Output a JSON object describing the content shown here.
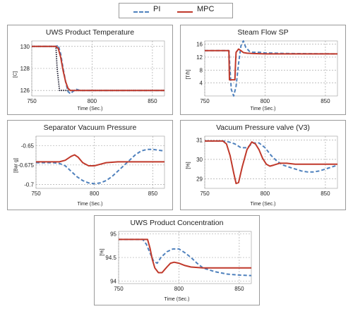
{
  "legend": {
    "pi_label": "PI",
    "mpc_label": "MPC"
  },
  "colors": {
    "pi": "#4f81bd",
    "mpc": "#c0392b",
    "setpoint": "#1a1a2e",
    "grid": "#9a9a9a"
  },
  "chart_data": [
    {
      "id": "uws-temp",
      "type": "line",
      "title": "UWS Product Temperature",
      "xlabel": "Time (Sec.)",
      "ylabel": "[C]",
      "xlim": [
        750,
        860
      ],
      "ylim": [
        125.5,
        130.5
      ],
      "xticks": [
        750,
        800,
        850
      ],
      "yticks": [
        126,
        128,
        130
      ],
      "yticklabels": [
        "126",
        "128",
        "130"
      ],
      "grid": true,
      "series": [
        {
          "name": "Setpoint",
          "style": "dotted",
          "x": [
            750,
            770,
            771,
            773,
            860
          ],
          "y": [
            130,
            130,
            128,
            126,
            126
          ]
        },
        {
          "name": "PI",
          "style": "dashed",
          "x": [
            750,
            770,
            772,
            774,
            776,
            778,
            780,
            782,
            784,
            787,
            790,
            795,
            800,
            860
          ],
          "y": [
            130,
            130,
            130.1,
            129.3,
            128,
            126.8,
            125.9,
            125.7,
            125.9,
            126.1,
            126,
            126,
            126,
            126
          ]
        },
        {
          "name": "MPC",
          "style": "solid",
          "x": [
            750,
            770,
            772,
            774,
            776,
            778,
            780,
            782,
            785,
            788,
            792,
            800,
            860
          ],
          "y": [
            130,
            130,
            129.8,
            129,
            127.8,
            126.8,
            126.2,
            126,
            126,
            126,
            126,
            126,
            126
          ]
        }
      ]
    },
    {
      "id": "steam-flow",
      "type": "line",
      "title": "Steam Flow SP",
      "xlabel": "Time (Sec.)",
      "ylabel": "[T/h]",
      "xlim": [
        750,
        860
      ],
      "ylim": [
        0,
        17
      ],
      "xticks": [
        750,
        800,
        850
      ],
      "yticks": [
        4,
        8,
        12,
        16
      ],
      "yticklabels": [
        "4",
        "8",
        "12",
        "16"
      ],
      "grid": true,
      "series": [
        {
          "name": "PI",
          "style": "dashed",
          "x": [
            750,
            770,
            771,
            772,
            774,
            776,
            778,
            780,
            782,
            784,
            787,
            790,
            795,
            800,
            820,
            860
          ],
          "y": [
            14,
            14,
            8,
            2,
            0,
            3,
            10,
            15.5,
            17,
            15,
            13.8,
            13.5,
            13.5,
            13.3,
            13.1,
            13
          ]
        },
        {
          "name": "MPC",
          "style": "solid",
          "x": [
            750,
            770,
            770.5,
            775,
            775.5,
            776,
            778,
            780,
            782,
            785,
            790,
            800,
            860
          ],
          "y": [
            14,
            14,
            5,
            5,
            10,
            13.5,
            14.5,
            14,
            13.4,
            13.2,
            13.1,
            13,
            13
          ]
        }
      ]
    },
    {
      "id": "separator-vacuum",
      "type": "line",
      "title": "Separator Vacuum Pressure",
      "xlabel": "Time (Sec.)",
      "ylabel": "[Bar g]",
      "xlim": [
        750,
        860
      ],
      "ylim": [
        -0.705,
        -0.638
      ],
      "xticks": [
        750,
        800,
        850
      ],
      "yticks": [
        -0.65,
        -0.675,
        -0.7
      ],
      "yticklabels": [
        "-0.65",
        "-0.675",
        "-0.7"
      ],
      "grid": true,
      "series": [
        {
          "name": "PI",
          "style": "dashed",
          "x": [
            750,
            765,
            770,
            775,
            780,
            785,
            790,
            795,
            800,
            805,
            810,
            815,
            820,
            825,
            830,
            835,
            840,
            845,
            850,
            855,
            860
          ],
          "y": [
            -0.672,
            -0.672,
            -0.673,
            -0.676,
            -0.683,
            -0.69,
            -0.695,
            -0.698,
            -0.699,
            -0.698,
            -0.695,
            -0.69,
            -0.683,
            -0.676,
            -0.669,
            -0.662,
            -0.657,
            -0.655,
            -0.655,
            -0.656,
            -0.657
          ]
        },
        {
          "name": "MPC",
          "style": "solid",
          "x": [
            750,
            765,
            770,
            775,
            780,
            783,
            786,
            790,
            795,
            800,
            805,
            810,
            820,
            830,
            840,
            860
          ],
          "y": [
            -0.671,
            -0.671,
            -0.671,
            -0.669,
            -0.664,
            -0.662,
            -0.665,
            -0.672,
            -0.676,
            -0.676,
            -0.674,
            -0.672,
            -0.671,
            -0.671,
            -0.671,
            -0.671
          ]
        }
      ]
    },
    {
      "id": "vacuum-valve",
      "type": "line",
      "title": "Vacuum Pressure valve (V3)",
      "xlabel": "Time (Sec.)",
      "ylabel": "[%]",
      "xlim": [
        750,
        860
      ],
      "ylim": [
        28.5,
        31.2
      ],
      "xticks": [
        750,
        800,
        850
      ],
      "yticks": [
        29,
        30,
        31
      ],
      "yticklabels": [
        "29",
        "30",
        "31"
      ],
      "grid": true,
      "series": [
        {
          "name": "PI",
          "style": "dashed",
          "x": [
            750,
            765,
            770,
            775,
            780,
            785,
            790,
            795,
            800,
            805,
            810,
            815,
            820,
            825,
            830,
            835,
            840,
            845,
            850,
            855,
            860
          ],
          "y": [
            30.95,
            30.95,
            30.9,
            30.8,
            30.6,
            30.6,
            30.85,
            30.85,
            30.6,
            30.2,
            29.9,
            29.7,
            29.6,
            29.5,
            29.4,
            29.35,
            29.35,
            29.4,
            29.5,
            29.6,
            29.7
          ]
        },
        {
          "name": "MPC",
          "style": "solid",
          "x": [
            750,
            765,
            768,
            771,
            774,
            776,
            778,
            781,
            785,
            789,
            792,
            795,
            798,
            801,
            804,
            807,
            812,
            818,
            825,
            840,
            860
          ],
          "y": [
            30.95,
            30.95,
            30.8,
            30.2,
            29.3,
            28.75,
            28.8,
            29.6,
            30.5,
            30.9,
            30.8,
            30.5,
            30.05,
            29.75,
            29.65,
            29.7,
            29.8,
            29.8,
            29.75,
            29.75,
            29.75
          ]
        }
      ]
    },
    {
      "id": "uws-concentration",
      "type": "line",
      "title": "UWS Product Concentration",
      "xlabel": "Time (Sec.)",
      "ylabel": "[%]",
      "xlim": [
        750,
        860
      ],
      "ylim": [
        93.95,
        95.05
      ],
      "xticks": [
        750,
        800,
        850
      ],
      "yticks": [
        94,
        94.5,
        95
      ],
      "yticklabels": [
        "94",
        "94.5",
        "95"
      ],
      "grid": true,
      "series": [
        {
          "name": "PI",
          "style": "dashed",
          "x": [
            750,
            770,
            773,
            776,
            779,
            782,
            785,
            790,
            795,
            800,
            805,
            810,
            815,
            820,
            830,
            840,
            850,
            860
          ],
          "y": [
            94.88,
            94.88,
            94.78,
            94.6,
            94.42,
            94.38,
            94.5,
            94.62,
            94.68,
            94.68,
            94.6,
            94.5,
            94.38,
            94.28,
            94.2,
            94.15,
            94.13,
            94.12
          ]
        },
        {
          "name": "MPC",
          "style": "solid",
          "x": [
            750,
            774,
            776,
            778,
            780,
            783,
            786,
            790,
            793,
            796,
            800,
            805,
            810,
            820,
            830,
            860
          ],
          "y": [
            94.88,
            94.88,
            94.7,
            94.45,
            94.28,
            94.18,
            94.18,
            94.3,
            94.38,
            94.4,
            94.38,
            94.33,
            94.3,
            94.28,
            94.28,
            94.28
          ]
        }
      ]
    }
  ]
}
